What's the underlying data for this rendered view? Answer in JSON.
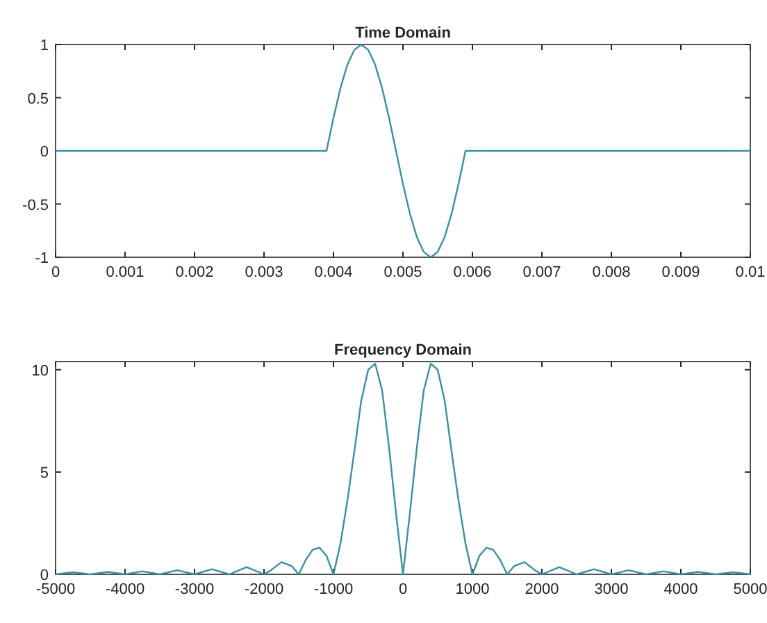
{
  "chart_data": [
    {
      "type": "line",
      "title": "Time Domain",
      "x": [
        0,
        0.0039,
        0.004,
        0.0041,
        0.0042,
        0.0043,
        0.0044,
        0.0045,
        0.0046,
        0.0047,
        0.0048,
        0.0049,
        0.005,
        0.0051,
        0.0052,
        0.0053,
        0.0054,
        0.0055,
        0.0056,
        0.0057,
        0.0058,
        0.0059,
        0.01
      ],
      "series": [
        {
          "color": "#3b8ea5",
          "values": [
            0,
            0,
            0.31,
            0.59,
            0.81,
            0.95,
            1,
            0.95,
            0.81,
            0.59,
            0.31,
            0,
            -0.31,
            -0.59,
            -0.81,
            -0.95,
            -1,
            -0.95,
            -0.81,
            -0.59,
            -0.31,
            0,
            0
          ]
        }
      ],
      "xlim": [
        0,
        0.01
      ],
      "ylim": [
        -1,
        1
      ],
      "xticks": [
        0,
        0.001,
        0.002,
        0.003,
        0.004,
        0.005,
        0.006,
        0.007,
        0.008,
        0.009,
        0.01
      ],
      "yticks": [
        -1,
        -0.5,
        0,
        0.5,
        1
      ]
    },
    {
      "type": "line",
      "title": "Frequency Domain",
      "x": [
        -5000,
        -4750,
        -4500,
        -4250,
        -4000,
        -3750,
        -3500,
        -3250,
        -3000,
        -2750,
        -2500,
        -2250,
        -2000,
        -1900,
        -1750,
        -1600,
        -1500,
        -1400,
        -1300,
        -1200,
        -1100,
        -1000,
        -900,
        -800,
        -700,
        -600,
        -500,
        -400,
        -300,
        -200,
        -100,
        0,
        100,
        200,
        300,
        400,
        500,
        600,
        700,
        800,
        900,
        1000,
        1100,
        1200,
        1300,
        1400,
        1500,
        1600,
        1750,
        1900,
        2000,
        2250,
        2500,
        2750,
        3000,
        3250,
        3500,
        3750,
        4000,
        4250,
        4500,
        4750,
        5000
      ],
      "series": [
        {
          "color": "#3b8ea5",
          "values": [
            0,
            0.1,
            0,
            0.12,
            0,
            0.15,
            0,
            0.2,
            0,
            0.25,
            0,
            0.35,
            0,
            0.2,
            0.6,
            0.4,
            0,
            0.7,
            1.2,
            1.3,
            0.9,
            0,
            1.5,
            3.6,
            6,
            8.5,
            10,
            10.3,
            9,
            6.2,
            3,
            0,
            3,
            6.2,
            9,
            10.3,
            10,
            8.5,
            6,
            3.6,
            1.5,
            0,
            0.9,
            1.3,
            1.2,
            0.7,
            0,
            0.4,
            0.6,
            0.2,
            0,
            0.35,
            0,
            0.25,
            0,
            0.2,
            0,
            0.15,
            0,
            0.12,
            0,
            0.1,
            0
          ]
        }
      ],
      "xlim": [
        -5000,
        5000
      ],
      "ylim": [
        0,
        10.4
      ],
      "xticks": [
        -5000,
        -4000,
        -3000,
        -2000,
        -1000,
        0,
        1000,
        2000,
        3000,
        4000,
        5000
      ],
      "yticks": [
        0,
        5,
        10
      ]
    }
  ]
}
